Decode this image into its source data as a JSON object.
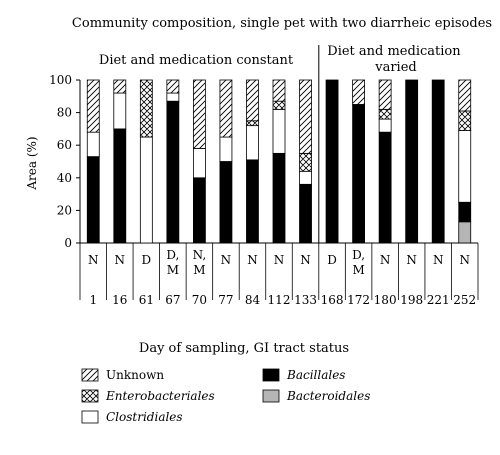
{
  "chart_data": {
    "type": "bar",
    "stacked": true,
    "title": "Community composition, single pet with two diarrheic episodes",
    "xlabel": "Day of sampling, GI tract status",
    "ylabel": "Area (%)",
    "ylim": [
      0,
      100
    ],
    "yticks": [
      0,
      20,
      40,
      60,
      80,
      100
    ],
    "annotations": [
      "Diet and medication constant",
      "Diet and medication varied"
    ],
    "categories": [
      "1",
      "16",
      "61",
      "67",
      "70",
      "77",
      "84",
      "112",
      "133",
      "168",
      "172",
      "180",
      "198",
      "221",
      "252"
    ],
    "status": [
      "N",
      "N",
      "D",
      "D,\nM",
      "N,\nM",
      "N",
      "N",
      "N",
      "N",
      "D",
      "D,\nM",
      "N",
      "N",
      "N",
      "N"
    ],
    "legend_position": "bottom",
    "series": [
      {
        "name": "Bacteroidales",
        "italic": true,
        "pattern": "gray",
        "values": [
          0,
          0,
          0,
          0,
          0,
          0,
          0,
          0,
          0,
          0,
          0,
          0,
          0,
          0,
          13
        ]
      },
      {
        "name": "Bacillales",
        "italic": true,
        "pattern": "black",
        "values": [
          53,
          70,
          0,
          87,
          40,
          50,
          51,
          55,
          36,
          100,
          85,
          68,
          100,
          100,
          12
        ]
      },
      {
        "name": "Clostridiales",
        "italic": true,
        "pattern": "white",
        "values": [
          15,
          22,
          65,
          5,
          18,
          15,
          21,
          27,
          8,
          0,
          0,
          8,
          0,
          0,
          44
        ]
      },
      {
        "name": "Enterobacteriales",
        "italic": true,
        "pattern": "crosshatch",
        "values": [
          0,
          0,
          35,
          0,
          0,
          0,
          3,
          5,
          11,
          0,
          0,
          6,
          0,
          0,
          12
        ]
      },
      {
        "name": "Unknown",
        "italic": false,
        "pattern": "diagonal",
        "values": [
          32,
          8,
          0,
          8,
          42,
          35,
          25,
          13,
          45,
          0,
          15,
          18,
          0,
          0,
          19
        ]
      }
    ]
  }
}
